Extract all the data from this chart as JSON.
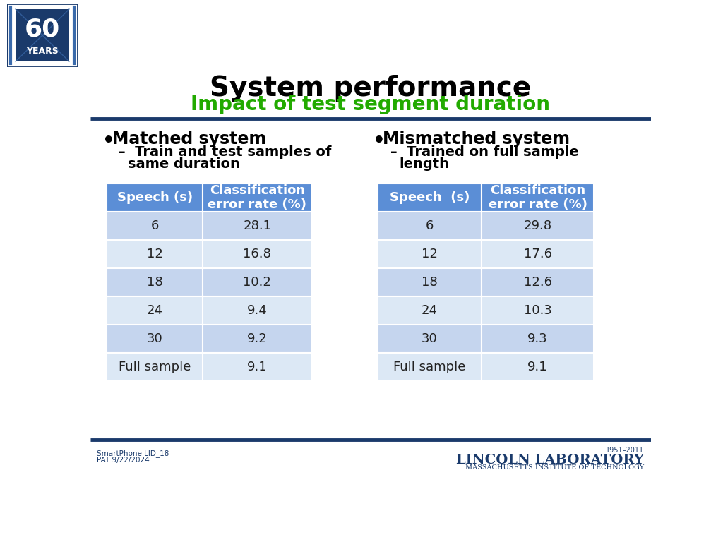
{
  "title": "System performance",
  "subtitle": "Impact of test segment duration",
  "title_color": "#000000",
  "subtitle_color": "#22aa00",
  "bg_color": "#ffffff",
  "header_bg": "#5b8ed6",
  "header_text_color": "#ffffff",
  "row_colors_alt": [
    "#c5d5ee",
    "#dce8f5"
  ],
  "last_row_bg": "#dce8f5",
  "left_bullet": "Matched system",
  "left_sub_line1": "Train and test samples of",
  "left_sub_line2": "same duration",
  "right_bullet": "Mismatched system",
  "right_sub_line1": "Trained on full sample",
  "right_sub_line2": "length",
  "left_table": {
    "headers": [
      "Speech (s)",
      "Classification\nerror rate (%)"
    ],
    "rows": [
      [
        "6",
        "28.1"
      ],
      [
        "12",
        "16.8"
      ],
      [
        "18",
        "10.2"
      ],
      [
        "24",
        "9.4"
      ],
      [
        "30",
        "9.2"
      ],
      [
        "Full sample",
        "9.1"
      ]
    ]
  },
  "right_table": {
    "headers": [
      "Speech  (s)",
      "Classification\nerror rate (%)"
    ],
    "rows": [
      [
        "6",
        "29.8"
      ],
      [
        "12",
        "17.6"
      ],
      [
        "18",
        "12.6"
      ],
      [
        "24",
        "10.3"
      ],
      [
        "30",
        "9.3"
      ],
      [
        "Full sample",
        "9.1"
      ]
    ]
  },
  "footer_left_line1": "SmartPhone LID_18",
  "footer_left_line2": "PAT 9/22/2024",
  "footer_right_line1": "1951–2011",
  "footer_right_line2": "LINCOLN LABORATORY",
  "footer_right_line3": "MASSACHUSETTS INSTITUTE OF TECHNOLOGY",
  "line_color": "#1a3a6b",
  "footer_color": "#1a3a6b"
}
